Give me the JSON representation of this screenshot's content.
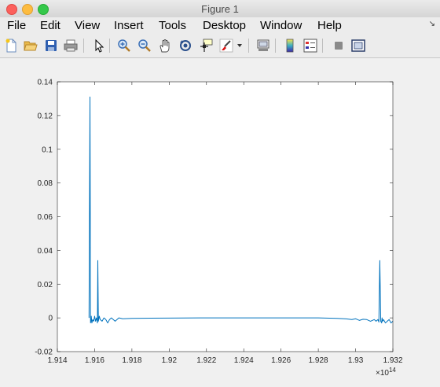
{
  "window": {
    "title": "Figure 1"
  },
  "menubar": {
    "items": [
      "File",
      "Edit",
      "View",
      "Insert",
      "Tools",
      "Desktop",
      "Window",
      "Help"
    ]
  },
  "toolbar": {
    "buttons": [
      {
        "name": "new-figure-button",
        "icon": "new-file-icon"
      },
      {
        "name": "open-file-button",
        "icon": "open-folder-icon"
      },
      {
        "name": "save-button",
        "icon": "save-icon"
      },
      {
        "name": "print-button",
        "icon": "print-icon"
      },
      {
        "name": "edit-plot-button",
        "icon": "arrow-cursor-icon"
      },
      {
        "name": "zoom-in-button",
        "icon": "zoom-in-icon"
      },
      {
        "name": "zoom-out-button",
        "icon": "zoom-out-icon"
      },
      {
        "name": "pan-button",
        "icon": "hand-icon"
      },
      {
        "name": "rotate-3d-button",
        "icon": "rotate-icon"
      },
      {
        "name": "data-cursor-button",
        "icon": "data-cursor-icon"
      },
      {
        "name": "brush-button",
        "icon": "brush-icon"
      },
      {
        "name": "brush-dropdown-button",
        "icon": "chevron-down-icon"
      },
      {
        "name": "link-plot-button",
        "icon": "link-plot-icon"
      },
      {
        "name": "insert-colorbar-button",
        "icon": "colorbar-icon"
      },
      {
        "name": "insert-legend-button",
        "icon": "legend-icon"
      },
      {
        "name": "hide-plot-tools-button",
        "icon": "hide-tools-icon"
      },
      {
        "name": "show-plot-tools-button",
        "icon": "show-tools-icon"
      }
    ]
  },
  "chart_data": {
    "type": "line",
    "x_exponent_label": "×10",
    "x_exponent_power": "14",
    "xlim": [
      1.914,
      1.932
    ],
    "ylim": [
      -0.02,
      0.14
    ],
    "xticks": [
      "1.914",
      "1.916",
      "1.918",
      "1.92",
      "1.922",
      "1.924",
      "1.926",
      "1.928",
      "1.93",
      "1.932"
    ],
    "yticks": [
      "-0.02",
      "0",
      "0.02",
      "0.04",
      "0.06",
      "0.08",
      "0.1",
      "0.12",
      "0.14"
    ],
    "grid": false,
    "series": [
      {
        "color": "#0072bd",
        "x": [
          1.9157,
          1.91575,
          1.91578,
          1.9158,
          1.91582,
          1.91585,
          1.9159,
          1.91595,
          1.916,
          1.91605,
          1.9161,
          1.91615,
          1.91617,
          1.9162,
          1.91625,
          1.9163,
          1.9164,
          1.9165,
          1.9166,
          1.9167,
          1.9168,
          1.9169,
          1.917,
          1.9171,
          1.9172,
          1.9173,
          1.9175,
          1.918,
          1.919,
          1.92,
          1.922,
          1.924,
          1.926,
          1.928,
          1.929,
          1.9295,
          1.9298,
          1.93,
          1.9302,
          1.9304,
          1.9306,
          1.9308,
          1.931,
          1.9311,
          1.9312,
          1.93125,
          1.9313,
          1.93135,
          1.9314,
          1.93142,
          1.93145,
          1.9315,
          1.9316,
          1.9317,
          1.9318,
          1.9319,
          1.932
        ],
        "y": [
          0,
          0.131,
          -0.003,
          -0.002,
          0.001,
          -0.003,
          -0.001,
          -0.002,
          0.001,
          -0.002,
          0.0,
          -0.003,
          0.034,
          -0.002,
          0.001,
          -0.001,
          -0.002,
          0.0,
          -0.001,
          -0.003,
          -0.001,
          0.0,
          -0.001,
          -0.002,
          -0.001,
          0.0,
          -0.0005,
          -0.0003,
          -0.0002,
          -0.0001,
          0.0,
          0.0,
          0.0,
          0.0,
          -0.0003,
          -0.0006,
          -0.001,
          -0.0005,
          -0.0015,
          -0.0008,
          -0.001,
          -0.002,
          -0.001,
          -0.002,
          -0.001,
          -0.0025,
          0.034,
          -0.002,
          -0.003,
          0.0,
          -0.002,
          -0.001,
          -0.003,
          -0.002,
          -0.001,
          -0.003,
          -0.002
        ]
      }
    ]
  }
}
